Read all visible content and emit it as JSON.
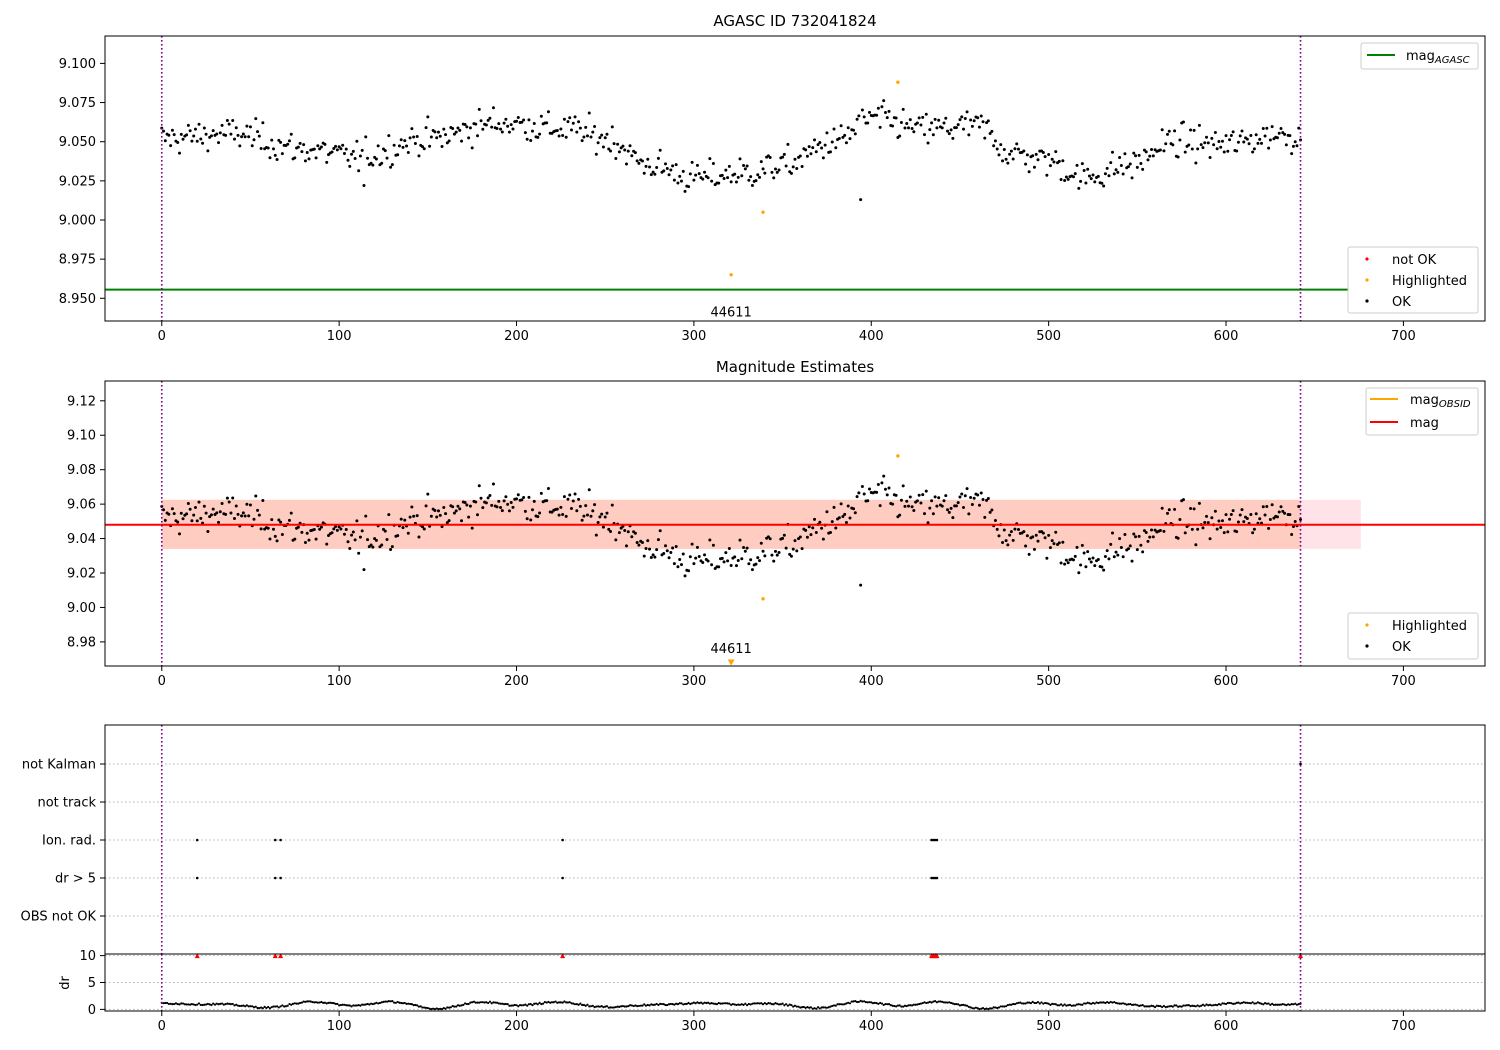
{
  "chart_data": [
    {
      "type": "scatter",
      "title": "AGASC ID 732041824",
      "x_ticks": [
        "0",
        "100",
        "200",
        "300",
        "400",
        "500",
        "600",
        "700"
      ],
      "y_ticks": [
        "8.950",
        "8.975",
        "9.000",
        "9.025",
        "9.050",
        "9.075",
        "9.100"
      ],
      "xlim": [
        -32,
        746
      ],
      "ylim": [
        8.9355,
        9.1175
      ],
      "vlines": [
        0,
        642
      ],
      "hline": {
        "y": 8.9555,
        "color": "#008000",
        "x_end": 676
      },
      "obsid_label": {
        "text": "44611",
        "x": 321,
        "y": 8.9385
      },
      "series_ok_color": "#000000",
      "highlighted_points": [
        [
          415,
          9.088
        ],
        [
          321,
          8.965
        ],
        [
          339,
          9.005
        ]
      ],
      "legend_top": {
        "label": "mag",
        "subscript": "AGASC",
        "color": "#008000"
      },
      "legend_bottom": [
        {
          "label": "not OK",
          "color": "#ff0000"
        },
        {
          "label": "Highlighted",
          "color": "#ffa500"
        },
        {
          "label": "OK",
          "color": "#000000"
        }
      ]
    },
    {
      "type": "scatter",
      "title": "Magnitude Estimates",
      "x_ticks": [
        "0",
        "100",
        "200",
        "300",
        "400",
        "500",
        "600",
        "700"
      ],
      "y_ticks": [
        "8.98",
        "9.00",
        "9.02",
        "9.04",
        "9.06",
        "9.08",
        "9.10",
        "9.12"
      ],
      "xlim": [
        -32,
        746
      ],
      "ylim": [
        8.966,
        9.1315
      ],
      "vlines": [
        0,
        642
      ],
      "mag_line": {
        "y": 9.048,
        "color": "#ff0000"
      },
      "band": {
        "y_min": 9.034,
        "y_max": 9.0625,
        "x_end_outer": 676,
        "x_end_inner": 642
      },
      "obsid_label": {
        "text": "44611",
        "x": 321,
        "y": 8.9735
      },
      "highlighted_points": [
        [
          415,
          9.088
        ],
        [
          339,
          9.005
        ]
      ],
      "highlighted_triangle": [
        321,
        8.968
      ],
      "legend_top": [
        {
          "label": "mag",
          "subscript": "OBSID",
          "color": "#ffa500"
        },
        {
          "label": "mag",
          "subscript": "",
          "color": "#ff0000"
        }
      ],
      "legend_bottom": [
        {
          "label": "Highlighted",
          "color": "#ffa500"
        },
        {
          "label": "OK",
          "color": "#000000"
        }
      ]
    },
    {
      "type": "scatter",
      "flag_rows": [
        "not Kalman",
        "not track",
        "Ion. rad.",
        "dr > 5",
        "OBS not OK"
      ],
      "flag_points": {
        "Ion. rad.": [
          20,
          64,
          67,
          226,
          434,
          435,
          436,
          437
        ],
        "dr > 5": [
          20,
          64,
          67,
          226,
          434,
          435,
          436,
          437
        ],
        "not Kalman": [
          642
        ]
      },
      "x_ticks": [
        "0",
        "100",
        "200",
        "300",
        "400",
        "500",
        "600",
        "700"
      ],
      "xlim": [
        -32,
        746
      ],
      "vlines": [
        0,
        642
      ],
      "dr_panel": {
        "ylabel": "dr",
        "y_ticks": [
          "0",
          "5",
          "10"
        ],
        "ylim": [
          -0.3,
          10.3
        ],
        "red_markers_x": [
          20,
          64,
          67,
          226,
          434,
          435,
          436,
          437,
          642
        ],
        "red_marker_y": 10
      }
    }
  ]
}
